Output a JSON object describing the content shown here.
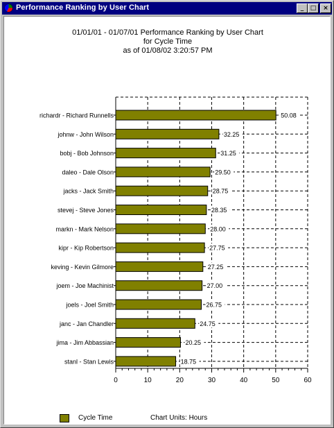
{
  "window": {
    "title": "Performance Ranking by User Chart",
    "buttons": {
      "minimize": "_",
      "maximize": "□",
      "close": "×"
    }
  },
  "header": {
    "line1": "01/01/01 - 01/07/01 Performance Ranking by User Chart",
    "line2": "for Cycle Time",
    "line3": "as of 01/08/02 3:20:57 PM"
  },
  "legend": {
    "label": "Cycle Time",
    "units": "Chart Units: Hours"
  },
  "colors": {
    "bar": "#808000",
    "titlebar": "#000080"
  },
  "chart_data": {
    "type": "bar",
    "orientation": "horizontal",
    "categories": [
      "richardr - Richard Runnells",
      "johnw - John Wilson",
      "bobj - Bob Johnson",
      "daleo - Dale Olson",
      "jacks - Jack Smith",
      "stevej - Steve Jones",
      "markn - Mark Nelson",
      "kipr - Kip Robertson",
      "keving - Kevin Gilmore",
      "joem - Joe Machinist",
      "joels - Joel Smith",
      "janc - Jan Chandler",
      "jima - Jim Abbassian",
      "stanl - Stan Lewis"
    ],
    "values": [
      50.08,
      32.25,
      31.25,
      29.5,
      28.75,
      28.35,
      28.0,
      27.75,
      27.25,
      27.0,
      26.75,
      24.75,
      20.25,
      18.75
    ],
    "data_labels": [
      "50.08",
      "32.25",
      "31.25",
      "29.50",
      "28.75",
      "28.35",
      "28.00",
      "27.75",
      "27.25",
      "27.00",
      "26.75",
      "24.75",
      "20.25",
      "18.75"
    ],
    "series": [
      {
        "name": "Cycle Time"
      }
    ],
    "xlim": [
      0,
      60
    ],
    "xticks": [
      0,
      10,
      20,
      30,
      40,
      50,
      60
    ],
    "grid": true,
    "legend": "bottom-left"
  }
}
